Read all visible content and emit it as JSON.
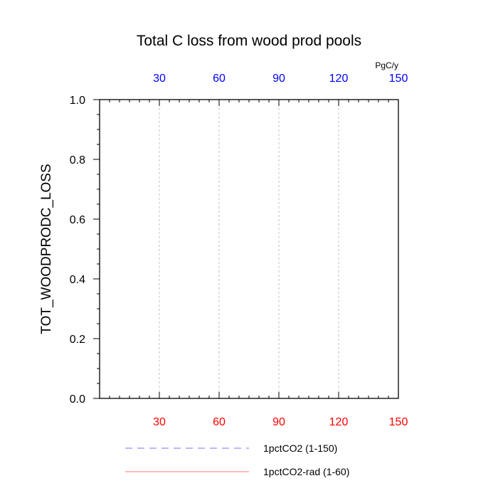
{
  "chart_data": {
    "type": "line",
    "title": "Total C loss from wood prod pools",
    "ylabel": "TOT_WOODPRODC_LOSS",
    "units": "PgC/y",
    "xlim": [
      1,
      150
    ],
    "ylim": [
      0,
      1
    ],
    "x_ticks": [
      30,
      60,
      90,
      120,
      150
    ],
    "x_tick_labels": [
      "30",
      "60",
      "90",
      "120",
      "150"
    ],
    "y_ticks": [
      0,
      0.2,
      0.4,
      0.6,
      0.8,
      1.0
    ],
    "y_tick_labels": [
      "0.0",
      "0.2",
      "0.4",
      "0.6",
      "0.8",
      "1.0"
    ],
    "grid": "vertical dashed at x ticks",
    "legend_position": "bottom",
    "series": [
      {
        "name": "1pctCO2 (1-150)",
        "color": "#0000ff",
        "style": "dashed",
        "x": [
          1,
          150
        ],
        "y": [
          0,
          0
        ]
      },
      {
        "name": "1pctCO2-rad (1-60)",
        "color": "#ff0000",
        "style": "solid",
        "x": [
          1,
          60
        ],
        "y": [
          0,
          0
        ]
      }
    ],
    "colors": {
      "bottom_axis_labels": "#ff0000",
      "top_axis_labels": "#0000ff",
      "grid": "#b4b4b4"
    }
  }
}
